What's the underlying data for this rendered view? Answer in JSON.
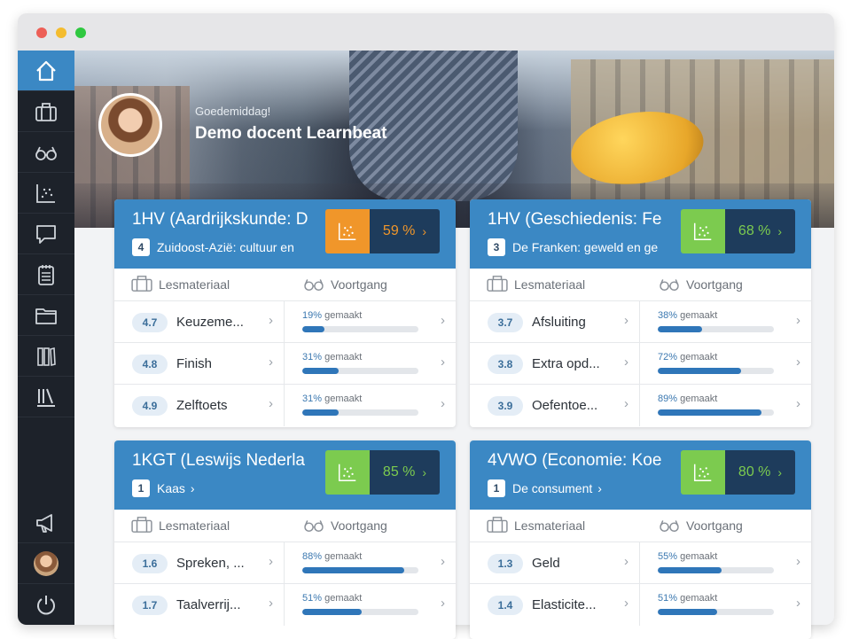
{
  "hero": {
    "greeting": "Goedemiddag!",
    "teacher_name": "Demo docent Learnbeat"
  },
  "sidebar": {
    "items": [
      {
        "name": "home-icon",
        "active": true
      },
      {
        "name": "briefcase-icon"
      },
      {
        "name": "glasses-icon"
      },
      {
        "name": "chart-icon"
      },
      {
        "name": "chat-icon"
      },
      {
        "name": "notepad-icon"
      },
      {
        "name": "folder-icon"
      },
      {
        "name": "books-icon"
      },
      {
        "name": "library-icon"
      },
      {
        "name": "megaphone-icon"
      },
      {
        "name": "avatar"
      },
      {
        "name": "power-icon"
      }
    ]
  },
  "column_labels": {
    "material": "Lesmateriaal",
    "progress": "Voortgang",
    "made": "gemaakt"
  },
  "colors": {
    "accent": "#3b88c4",
    "orange": "#f0962a",
    "green": "#7ccb4f",
    "dark": "#1e3c5c"
  },
  "cards": [
    {
      "title": "1HV (Aardrijkskunde: D",
      "chapter_num": "4",
      "chapter": "Zuidoost-Azië: cultuur en",
      "chapter_chevron": false,
      "progress": "59 %",
      "progress_color": "orange",
      "rows": [
        {
          "num": "4.7",
          "name": "Keuzeme...",
          "pct_label": "19%",
          "pct": 19
        },
        {
          "num": "4.8",
          "name": "Finish",
          "pct_label": "31%",
          "pct": 31
        },
        {
          "num": "4.9",
          "name": "Zelftoets",
          "pct_label": "31%",
          "pct": 31
        }
      ]
    },
    {
      "title": "1HV (Geschiedenis: Fe",
      "chapter_num": "3",
      "chapter": "De Franken: geweld en ge",
      "chapter_chevron": false,
      "progress": "68 %",
      "progress_color": "green",
      "rows": [
        {
          "num": "3.7",
          "name": "Afsluiting",
          "pct_label": "38%",
          "pct": 38
        },
        {
          "num": "3.8",
          "name": "Extra opd...",
          "pct_label": "72%",
          "pct": 72
        },
        {
          "num": "3.9",
          "name": "Oefentoe...",
          "pct_label": "89%",
          "pct": 89
        }
      ]
    },
    {
      "title": "1KGT (Leswijs Nederla",
      "chapter_num": "1",
      "chapter": "Kaas",
      "chapter_chevron": true,
      "progress": "85 %",
      "progress_color": "green",
      "rows": [
        {
          "num": "1.6",
          "name": "Spreken, ...",
          "pct_label": "88%",
          "pct": 88
        },
        {
          "num": "1.7",
          "name": "Taalverrij...",
          "pct_label": "51%",
          "pct": 51
        }
      ]
    },
    {
      "title": "4VWO (Economie: Koe",
      "chapter_num": "1",
      "chapter": "De consument",
      "chapter_chevron": true,
      "progress": "80 %",
      "progress_color": "green",
      "rows": [
        {
          "num": "1.3",
          "name": "Geld",
          "pct_label": "55%",
          "pct": 55
        },
        {
          "num": "1.4",
          "name": "Elasticite...",
          "pct_label": "51%",
          "pct": 51
        }
      ]
    }
  ]
}
